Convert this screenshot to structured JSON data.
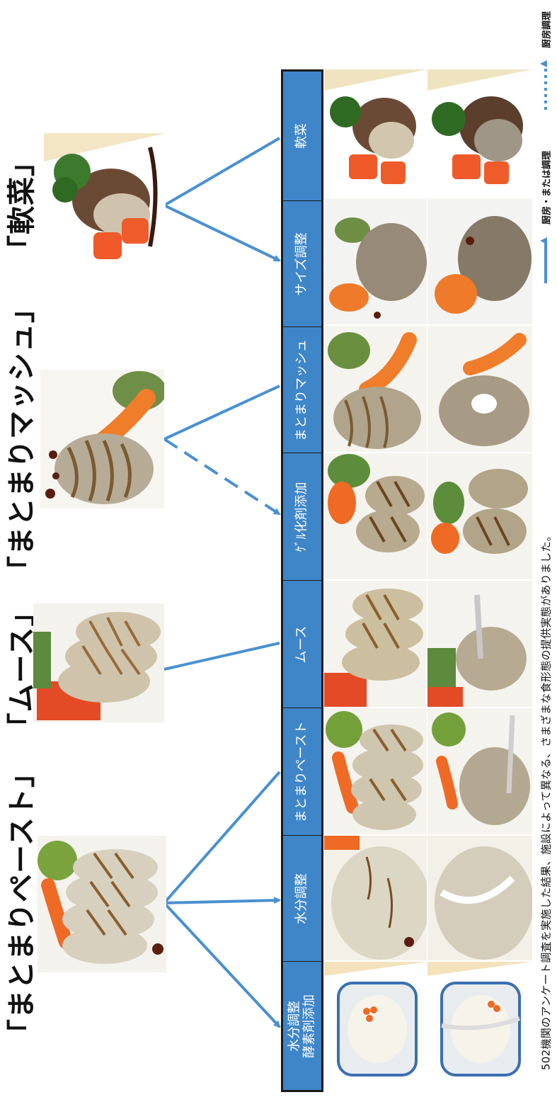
{
  "categories": [
    {
      "key": "soft",
      "label": "「軟菜」"
    },
    {
      "key": "matomari_mash",
      "label": "「まとまりマッシュ」"
    },
    {
      "key": "mousse",
      "label": "「ムース」"
    },
    {
      "key": "matomari_paste",
      "label": "「まとまりペースト」"
    }
  ],
  "stages": [
    {
      "label": "軟菜"
    },
    {
      "label": "サイズ調整"
    },
    {
      "label": "まとまりマッシュ"
    },
    {
      "label": "ｹﾞﾙ化剤添加"
    },
    {
      "label": "ムース"
    },
    {
      "label": "まとまりペースト"
    },
    {
      "label": "水分調整"
    },
    {
      "label": "水分調整\n酵素剤添加"
    }
  ],
  "caption": "502機関のアンケート調査を実施した結果、施設によって異なる、さまざまな食形態の提供実態がありました。",
  "legend": {
    "solid": "厨房・または調理",
    "dashed": "厨房調理"
  },
  "colors": {
    "bar": "#3f86c9",
    "arrow": "#4a90d0",
    "border": "#1a1a1a"
  }
}
